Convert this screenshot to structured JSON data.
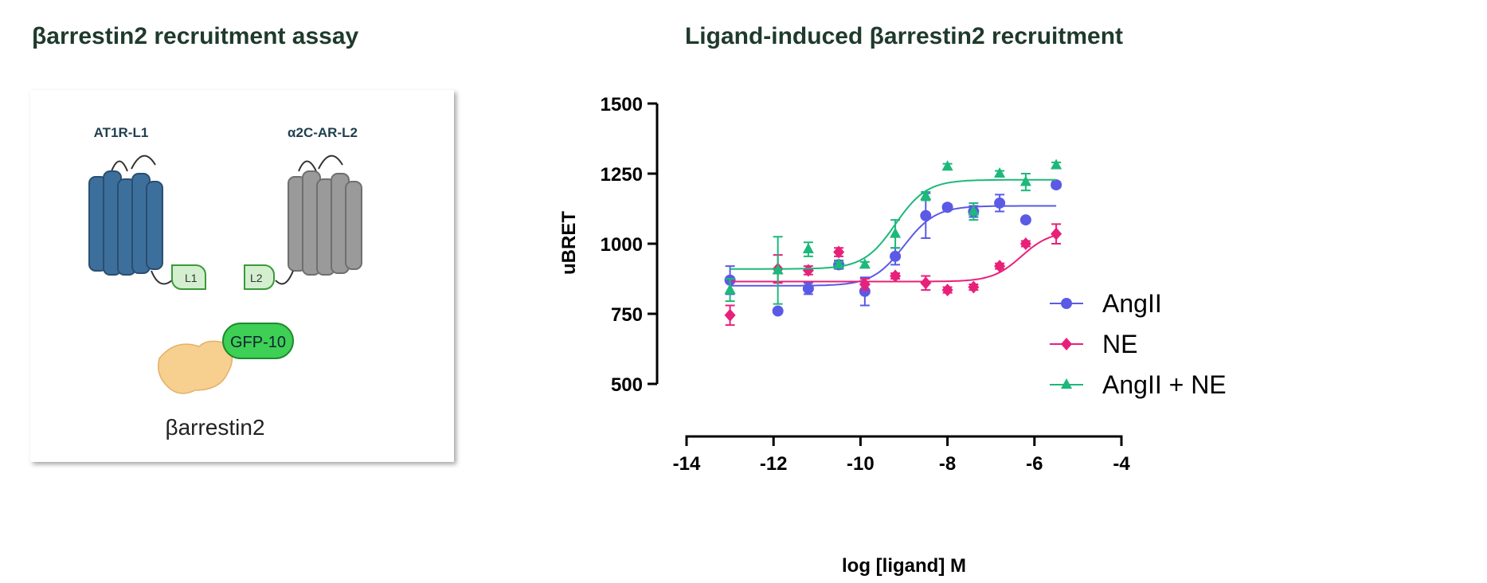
{
  "left_panel": {
    "title": "βarrestin2 recruitment assay",
    "receptor_1": "AT1R-L1",
    "receptor_2": "α2C-AR-L2",
    "tag_1": "L1",
    "tag_2": "L2",
    "tag_3": "GFP-10",
    "protein": "βarrestin2"
  },
  "chart_data": {
    "type": "dose-response",
    "title": "Ligand-induced βarrestin2 recruitment",
    "x_label": "log [ligand] M",
    "y_label": "uBRET",
    "xlim": [
      -14,
      -4
    ],
    "xticks": [
      -14,
      -12,
      -10,
      -8,
      -6,
      -4
    ],
    "ylim": [
      500,
      1500
    ],
    "yticks": [
      500,
      750,
      1000,
      1250,
      1500
    ],
    "x": [
      -13,
      -11.9,
      -11.2,
      -10.5,
      -9.9,
      -9.2,
      -8.5,
      -8,
      -7.4,
      -6.8,
      -6.2,
      -5.5
    ],
    "series": [
      {
        "name": "AngII",
        "color": "#5a5ae6",
        "marker": "circle",
        "values": [
          870,
          760,
          840,
          925,
          830,
          955,
          1100,
          1130,
          1115,
          1145,
          1085,
          1210
        ],
        "errors": [
          50,
          0,
          20,
          15,
          50,
          30,
          80,
          10,
          20,
          30,
          0,
          10
        ],
        "fit": {
          "bottom": 850,
          "top": 1135,
          "logec50": -9.0,
          "hill": 1.2
        }
      },
      {
        "name": "NE",
        "color": "#e8207a",
        "marker": "diamond",
        "values": [
          745,
          910,
          905,
          970,
          855,
          885,
          860,
          835,
          845,
          920,
          1000,
          1035
        ],
        "errors": [
          35,
          50,
          15,
          15,
          20,
          10,
          25,
          10,
          10,
          10,
          10,
          35
        ],
        "fit": {
          "bottom": 865,
          "top": 1045,
          "logec50": -6.3,
          "hill": 1.3
        }
      },
      {
        "name": "AngII + NE",
        "color": "#1db87a",
        "marker": "triangle",
        "values": [
          835,
          905,
          980,
          925,
          925,
          1035,
          1170,
          1275,
          1115,
          1250,
          1220,
          1280
        ],
        "errors": [
          40,
          120,
          25,
          10,
          10,
          50,
          15,
          10,
          30,
          10,
          30,
          10
        ],
        "fit": {
          "bottom": 910,
          "top": 1228,
          "logec50": -9.2,
          "hill": 1.2
        }
      }
    ]
  }
}
